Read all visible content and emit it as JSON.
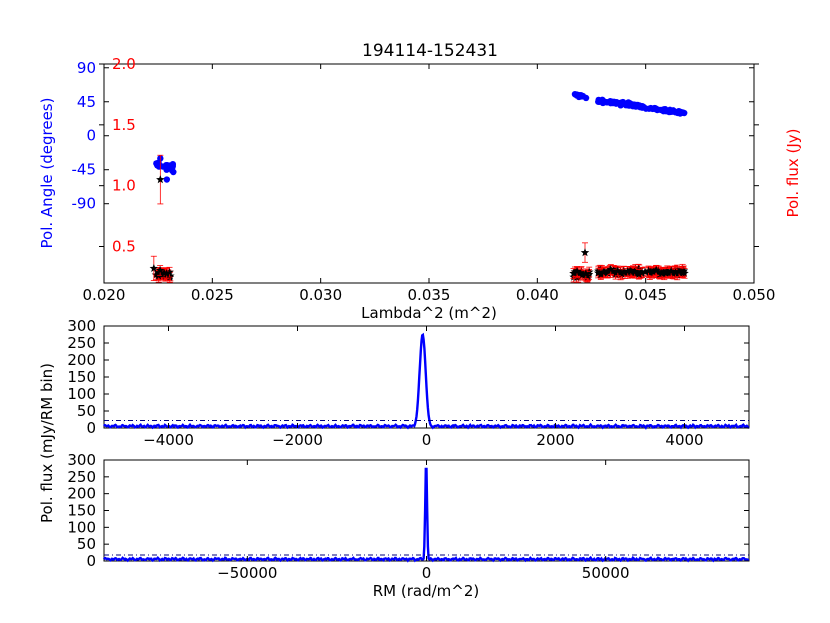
{
  "figure": {
    "title": "194114-152431"
  },
  "colors": {
    "angle": "#0000ff",
    "flux": "#ff0000",
    "marker": "#000000",
    "threshold": "#000080"
  },
  "chart_data": [
    {
      "type": "scatter",
      "title": "194114-152431",
      "xlabel": "Lambda^2 (m^2)",
      "ylabel": "Pol. Angle (degrees)",
      "y2label": "Pol. flux (Jy)",
      "xlim": [
        0.02,
        0.05
      ],
      "xticks": [
        "0.020",
        "0.025",
        "0.030",
        "0.035",
        "0.040",
        "0.045",
        "0.050"
      ],
      "yticks": [
        "90",
        "45",
        "0",
        "-45",
        "-90"
      ],
      "y2ticks": [
        "2.0",
        "1.5",
        "1.0",
        "0.5"
      ],
      "angle_range": [
        -195,
        95
      ],
      "flux_range": [
        0.2,
        2.0
      ],
      "series": [
        {
          "axis": "left",
          "marker": "circle",
          "clusters": [
            {
              "x": [
                0.0224,
                0.0232
              ],
              "y_start": -38,
              "y_end": -42,
              "spread": 7
            },
            {
              "x": [
                0.0417,
                0.0423
              ],
              "y_start": 55,
              "y_end": 50,
              "spread": 4
            },
            {
              "x": [
                0.0428,
                0.0468
              ],
              "y_start": 47,
              "y_end": 30,
              "spread": 4
            }
          ],
          "points": [
            [
              0.0229,
              -58
            ],
            [
              0.0232,
              -48
            ],
            [
              0.0226,
              -30
            ]
          ]
        },
        {
          "axis": "right",
          "marker": "star",
          "error_bars": true,
          "clusters": [
            {
              "x": [
                0.0223,
                0.0232
              ],
              "y": 0.27,
              "spread": 0.05,
              "err": 0.04
            },
            {
              "x": [
                0.0416,
                0.0424
              ],
              "y": 0.27,
              "spread": 0.05,
              "err": 0.04
            },
            {
              "x": [
                0.0428,
                0.0468
              ],
              "y": 0.29,
              "spread": 0.035,
              "err": 0.04
            }
          ],
          "points": [
            [
              0.0226,
              1.05,
              0.2
            ],
            [
              0.0223,
              0.32,
              0.1
            ],
            [
              0.0422,
              0.45,
              0.08
            ]
          ]
        }
      ]
    },
    {
      "type": "line",
      "xlabel": "",
      "ylabel": "Pol. flux (mJy/RM bin)",
      "xlim": [
        -5000,
        5000
      ],
      "ylim": [
        0,
        300
      ],
      "xticks": [
        "−4000",
        "−2000",
        "0",
        "2000",
        "4000"
      ],
      "yticks": [
        "300",
        "250",
        "200",
        "150",
        "100",
        "50",
        "0"
      ],
      "peak": {
        "x": -60,
        "y": 275,
        "width": 110
      },
      "noise_level": 8,
      "threshold": 22
    },
    {
      "type": "line",
      "xlabel": "RM (rad/m^2)",
      "ylabel": "",
      "xlim": [
        -90000,
        90000
      ],
      "ylim": [
        0,
        300
      ],
      "xticks": [
        "−50000",
        "0",
        "50000"
      ],
      "yticks": [
        "300",
        "250",
        "200",
        "150",
        "100",
        "50",
        "0"
      ],
      "peak": {
        "x": -100,
        "y": 295,
        "width": 600
      },
      "noise_level": 8,
      "threshold": 18
    }
  ]
}
